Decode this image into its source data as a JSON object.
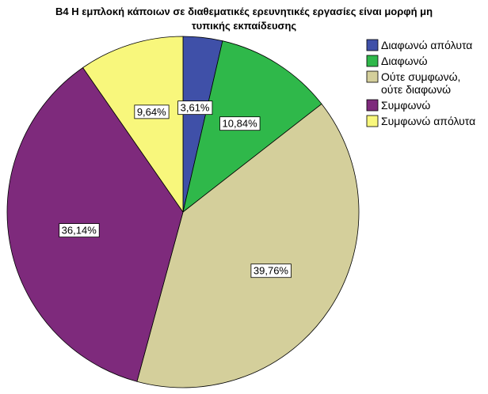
{
  "chart_data": {
    "type": "pie",
    "title_lines": [
      "Β4 Η εμπλοκή κάποιων σε διαθεματικές ερευνητικές εργασίες είναι μορφή μη",
      "τυπικής εκπαίδευσης"
    ],
    "start_angle_deg": 0,
    "direction": "clockwise",
    "legend_position": "right",
    "slices": [
      {
        "name_lines": [
          "Διαφωνώ απόλυτα"
        ],
        "value": 3.61,
        "label": "3,61%",
        "color": "#3f50a8"
      },
      {
        "name_lines": [
          "Διαφωνώ"
        ],
        "value": 10.84,
        "label": "10,84%",
        "color": "#2fb84a"
      },
      {
        "name_lines": [
          "Ούτε συμφωνώ,",
          "ούτε διαφωνώ"
        ],
        "value": 39.76,
        "label": "39,76%",
        "color": "#d4cf9b"
      },
      {
        "name_lines": [
          "Συμφωνώ"
        ],
        "value": 36.14,
        "label": "36,14%",
        "color": "#7e2a7c"
      },
      {
        "name_lines": [
          "Συμφωνώ απόλυτα"
        ],
        "value": 9.64,
        "label": "9,64%",
        "color": "#f8f77c"
      }
    ]
  }
}
